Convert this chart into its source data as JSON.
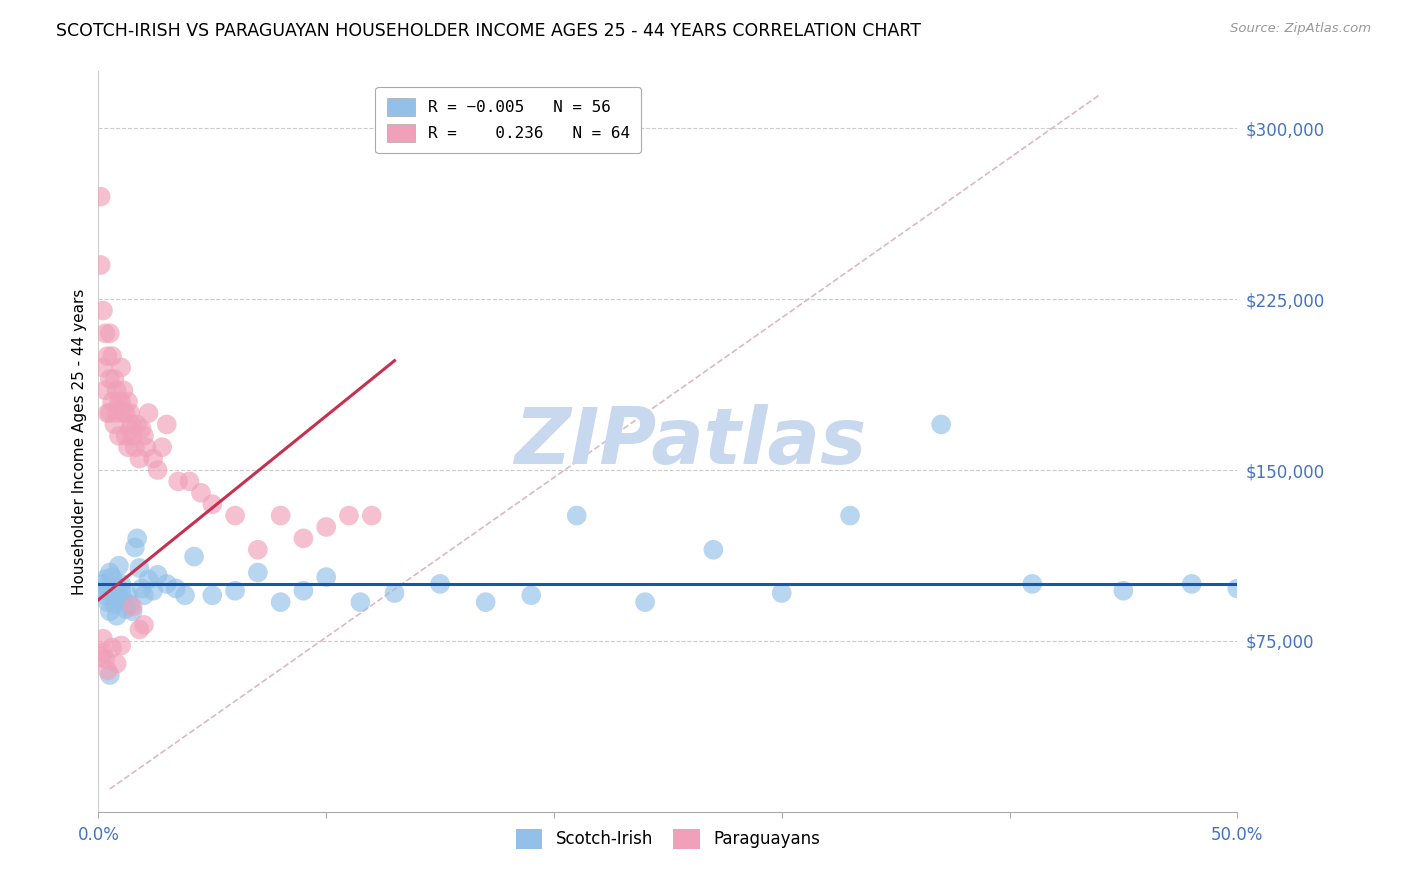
{
  "title": "SCOTCH-IRISH VS PARAGUAYAN HOUSEHOLDER INCOME AGES 25 - 44 YEARS CORRELATION CHART",
  "source": "Source: ZipAtlas.com",
  "ylabel": "Householder Income Ages 25 - 44 years",
  "ytick_labels": [
    "$75,000",
    "$150,000",
    "$225,000",
    "$300,000"
  ],
  "ytick_values": [
    75000,
    150000,
    225000,
    300000
  ],
  "ymin": 0,
  "ymax": 325000,
  "xmin": 0.0,
  "xmax": 0.5,
  "color_blue": "#92C0E8",
  "color_pink": "#F0A0B8",
  "color_blue_line": "#1A56A8",
  "color_pink_line": "#C83050",
  "color_diag_line": "#DDB8C0",
  "watermark_text": "ZIPatlas",
  "watermark_color": "#C8D8EE",
  "title_fontsize": 12.5,
  "axis_label_color": "#4472C4",
  "scotch_irish_x": [
    0.001,
    0.002,
    0.003,
    0.003,
    0.004,
    0.004,
    0.005,
    0.005,
    0.006,
    0.006,
    0.007,
    0.008,
    0.008,
    0.009,
    0.009,
    0.01,
    0.01,
    0.011,
    0.012,
    0.013,
    0.014,
    0.015,
    0.016,
    0.017,
    0.018,
    0.019,
    0.02,
    0.022,
    0.024,
    0.026,
    0.03,
    0.034,
    0.038,
    0.042,
    0.05,
    0.06,
    0.07,
    0.08,
    0.09,
    0.1,
    0.115,
    0.13,
    0.15,
    0.17,
    0.19,
    0.21,
    0.24,
    0.27,
    0.3,
    0.33,
    0.37,
    0.41,
    0.45,
    0.48,
    0.5,
    0.005
  ],
  "scotch_irish_y": [
    100000,
    97000,
    95000,
    102000,
    98000,
    92000,
    105000,
    88000,
    96000,
    103000,
    91000,
    99000,
    86000,
    94000,
    108000,
    100000,
    97000,
    93000,
    89000,
    95000,
    91000,
    88000,
    116000,
    120000,
    107000,
    98000,
    95000,
    102000,
    97000,
    104000,
    100000,
    98000,
    95000,
    112000,
    95000,
    97000,
    105000,
    92000,
    97000,
    103000,
    92000,
    96000,
    100000,
    92000,
    95000,
    130000,
    92000,
    115000,
    96000,
    130000,
    170000,
    100000,
    97000,
    100000,
    98000,
    60000
  ],
  "paraguayan_x": [
    0.001,
    0.001,
    0.002,
    0.002,
    0.003,
    0.003,
    0.004,
    0.004,
    0.005,
    0.005,
    0.005,
    0.006,
    0.006,
    0.007,
    0.007,
    0.008,
    0.008,
    0.009,
    0.009,
    0.01,
    0.01,
    0.011,
    0.011,
    0.012,
    0.012,
    0.013,
    0.013,
    0.014,
    0.014,
    0.015,
    0.015,
    0.016,
    0.017,
    0.018,
    0.019,
    0.02,
    0.021,
    0.022,
    0.024,
    0.026,
    0.028,
    0.03,
    0.035,
    0.04,
    0.045,
    0.05,
    0.06,
    0.07,
    0.08,
    0.09,
    0.1,
    0.11,
    0.12,
    0.015,
    0.018,
    0.02,
    0.002,
    0.003,
    0.004,
    0.006,
    0.001,
    0.002,
    0.008,
    0.01
  ],
  "paraguayan_y": [
    270000,
    240000,
    220000,
    195000,
    210000,
    185000,
    200000,
    175000,
    190000,
    210000,
    175000,
    200000,
    180000,
    190000,
    170000,
    185000,
    175000,
    180000,
    165000,
    195000,
    180000,
    175000,
    185000,
    175000,
    165000,
    180000,
    160000,
    175000,
    168000,
    170000,
    165000,
    160000,
    170000,
    155000,
    168000,
    165000,
    160000,
    175000,
    155000,
    150000,
    160000,
    170000,
    145000,
    145000,
    140000,
    135000,
    130000,
    115000,
    130000,
    120000,
    125000,
    130000,
    130000,
    90000,
    80000,
    82000,
    70000,
    67000,
    62000,
    72000,
    68000,
    76000,
    65000,
    73000
  ]
}
